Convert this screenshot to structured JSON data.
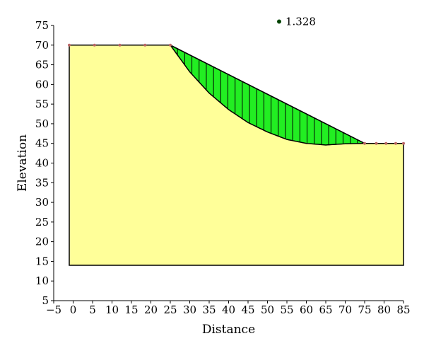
{
  "chart_data": {
    "type": "area",
    "title": "",
    "xlabel": "Distance",
    "ylabel": "Elevation",
    "xlim": [
      -5,
      85
    ],
    "ylim": [
      5,
      75
    ],
    "xticks": [
      -5,
      0,
      5,
      10,
      15,
      20,
      25,
      30,
      35,
      40,
      45,
      50,
      55,
      60,
      65,
      70,
      75,
      80,
      85
    ],
    "yticks": [
      5,
      10,
      15,
      20,
      25,
      30,
      35,
      40,
      45,
      50,
      55,
      60,
      65,
      70,
      75
    ],
    "xtick_labels": [
      "−5",
      "0",
      "5",
      "10",
      "15",
      "20",
      "25",
      "30",
      "35",
      "40",
      "45",
      "50",
      "55",
      "60",
      "65",
      "70",
      "75",
      "80",
      "85"
    ],
    "ytick_labels": [
      "5",
      "10",
      "15",
      "20",
      "25",
      "30",
      "35",
      "40",
      "45",
      "50",
      "55",
      "60",
      "65",
      "70",
      "75"
    ],
    "grid": false,
    "legend": "none",
    "slope_profile": {
      "x": [
        -1,
        25,
        75,
        85,
        85,
        -1
      ],
      "y": [
        70,
        70,
        45,
        45,
        14,
        14
      ],
      "fill": "#FFFF99"
    },
    "surface_points": {
      "x": [
        -1,
        5.5,
        12,
        18.5,
        25,
        75,
        78,
        80.5,
        83,
        85
      ],
      "y": [
        70,
        70,
        70,
        70,
        70,
        45,
        45,
        45,
        45,
        45
      ]
    },
    "slip_surface": {
      "x": [
        25,
        30,
        35,
        40,
        45,
        50,
        55,
        60,
        65,
        70,
        75
      ],
      "y": [
        70,
        63.2,
        57.8,
        53.6,
        50.3,
        47.9,
        46.0,
        45.0,
        44.6,
        44.9,
        45
      ],
      "fill": "#22EE22"
    },
    "slice_count": 27,
    "critical_center": {
      "x": 53,
      "y": 76,
      "color": "#004400"
    },
    "factor_of_safety": "1.328"
  }
}
